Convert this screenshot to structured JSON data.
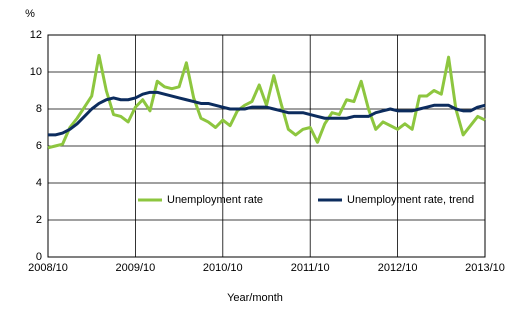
{
  "chart_data": {
    "type": "line",
    "y_label": "%",
    "x_label": "Year/month",
    "categories": [
      "2008/10",
      null,
      null,
      null,
      null,
      null,
      null,
      null,
      null,
      null,
      null,
      null,
      "2009/10",
      null,
      null,
      null,
      null,
      null,
      null,
      null,
      null,
      null,
      null,
      null,
      "2010/10",
      null,
      null,
      null,
      null,
      null,
      null,
      null,
      null,
      null,
      null,
      null,
      "2011/10",
      null,
      null,
      null,
      null,
      null,
      null,
      null,
      null,
      null,
      null,
      null,
      "2012/10",
      null,
      null,
      null,
      null,
      null,
      null,
      null,
      null,
      null,
      null,
      null,
      "2013/10"
    ],
    "series": [
      {
        "name": "Unemployment rate",
        "color": "#8dc63f",
        "values": [
          5.9,
          6.0,
          6.1,
          7.0,
          7.5,
          8.1,
          8.7,
          10.9,
          9.0,
          7.7,
          7.6,
          7.3,
          8.1,
          8.5,
          7.9,
          9.5,
          9.2,
          9.1,
          9.2,
          10.5,
          8.6,
          7.5,
          7.3,
          7.0,
          7.4,
          7.1,
          7.9,
          8.2,
          8.4,
          9.3,
          8.2,
          9.8,
          8.3,
          6.9,
          6.6,
          6.9,
          7.0,
          6.2,
          7.2,
          7.8,
          7.7,
          8.5,
          8.4,
          9.5,
          8.0,
          6.9,
          7.3,
          7.1,
          6.9,
          7.2,
          6.9,
          8.7,
          8.7,
          9.0,
          8.8,
          10.8,
          8.0,
          6.6,
          7.1,
          7.6,
          7.4
        ]
      },
      {
        "name": "Unemployment rate, trend",
        "color": "#0c2c5e",
        "values": [
          6.6,
          6.6,
          6.7,
          6.9,
          7.2,
          7.6,
          8.0,
          8.3,
          8.5,
          8.6,
          8.5,
          8.5,
          8.6,
          8.8,
          8.9,
          8.9,
          8.8,
          8.7,
          8.6,
          8.5,
          8.4,
          8.3,
          8.3,
          8.2,
          8.1,
          8.0,
          8.0,
          8.0,
          8.1,
          8.1,
          8.1,
          8.0,
          7.9,
          7.8,
          7.8,
          7.8,
          7.7,
          7.6,
          7.5,
          7.5,
          7.5,
          7.5,
          7.6,
          7.6,
          7.6,
          7.8,
          7.9,
          8.0,
          7.9,
          7.9,
          7.9,
          8.0,
          8.1,
          8.2,
          8.2,
          8.2,
          8.0,
          7.9,
          7.9,
          8.1,
          8.2
        ]
      }
    ],
    "ylim": [
      0,
      12
    ],
    "yticks": [
      0,
      2,
      4,
      6,
      8,
      10,
      12
    ],
    "grid": true
  }
}
